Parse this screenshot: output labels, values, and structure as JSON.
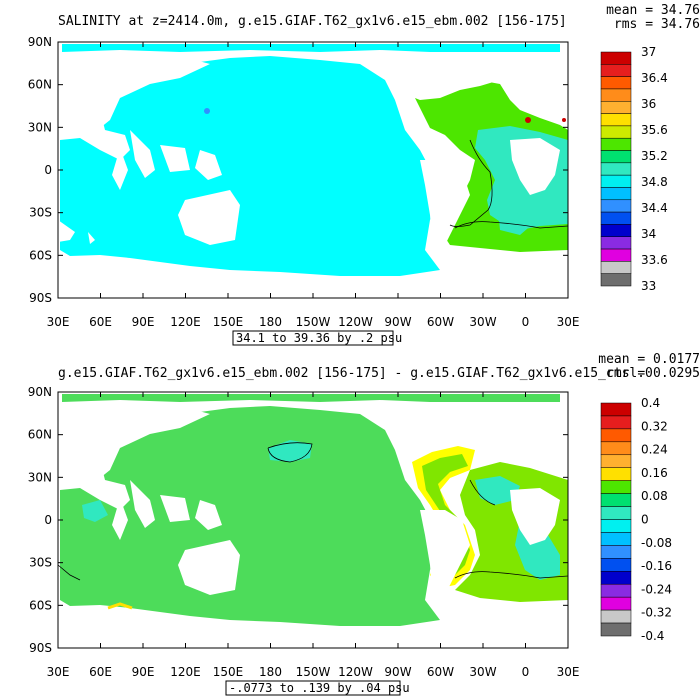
{
  "panels": [
    {
      "title": "SALINITY at z=2414.0m, g.e15.GIAF.T62_gx1v6.e15_ebm.002 [156-175]",
      "mean_label": "mean = 34.76",
      "rms_label": "rms = 34.76",
      "range_label": "34.1 to 39.36 by .2 psu",
      "lat_labels": [
        "90N",
        "60N",
        "30N",
        "0",
        "30S",
        "60S",
        "90S"
      ],
      "lon_labels": [
        "30E",
        "60E",
        "90E",
        "120E",
        "150E",
        "180",
        "150W",
        "120W",
        "90W",
        "60W",
        "30W",
        "0",
        "30E"
      ],
      "colorbar_labels": [
        "37",
        "36.4",
        "36",
        "35.6",
        "35.2",
        "34.8",
        "34.4",
        "34",
        "33.6",
        "33"
      ],
      "colorbar_colors": [
        "#cc0000",
        "#e61e1e",
        "#ff5a00",
        "#ff8c1a",
        "#ffb030",
        "#ffe000",
        "#cdeb00",
        "#4de600",
        "#00e070",
        "#30e8c0",
        "#00f0f0",
        "#00c0ff",
        "#3090ff",
        "#0050f0",
        "#0000cc",
        "#8a2be2",
        "#e000e0",
        "#c8c8c8",
        "#6e6e6e"
      ],
      "ocean_color": "#00ffff",
      "atlantic_color": "#4de600",
      "atlantic_inner_color": "#30e8c0"
    },
    {
      "title": "g.e15.GIAF.T62_gx1v6.e15_ebm.002 [156-175] - g.e15.GIAF.T62_gx1v6.e15_ctrl.0",
      "mean_label": "mean = 0.0177",
      "rms_label": "rms = 0.0295",
      "range_label": "-.0773 to .139 by .04 psu",
      "lat_labels": [
        "90N",
        "60N",
        "30N",
        "0",
        "30S",
        "60S",
        "90S"
      ],
      "lon_labels": [
        "30E",
        "60E",
        "90E",
        "120E",
        "150E",
        "180",
        "150W",
        "120W",
        "90W",
        "60W",
        "30W",
        "0",
        "30E"
      ],
      "colorbar_labels": [
        "0.4",
        "0.32",
        "0.24",
        "0.16",
        "0.08",
        "0",
        "-0.08",
        "-0.16",
        "-0.24",
        "-0.32",
        "-0.4"
      ],
      "colorbar_colors": [
        "#cc0000",
        "#e61e1e",
        "#ff5a00",
        "#ff8c1a",
        "#ffb030",
        "#ffe000",
        "#4de600",
        "#00e070",
        "#30e8c0",
        "#00f0f0",
        "#00c0ff",
        "#3090ff",
        "#0050f0",
        "#0000cc",
        "#8a2be2",
        "#e000e0",
        "#c8c8c8",
        "#6e6e6e"
      ],
      "ocean_color": "#4ddc5a",
      "atlantic_color": "#80e600",
      "atlantic_inner_color": "#30e8c0",
      "highlight_color": "#ffff00"
    }
  ]
}
